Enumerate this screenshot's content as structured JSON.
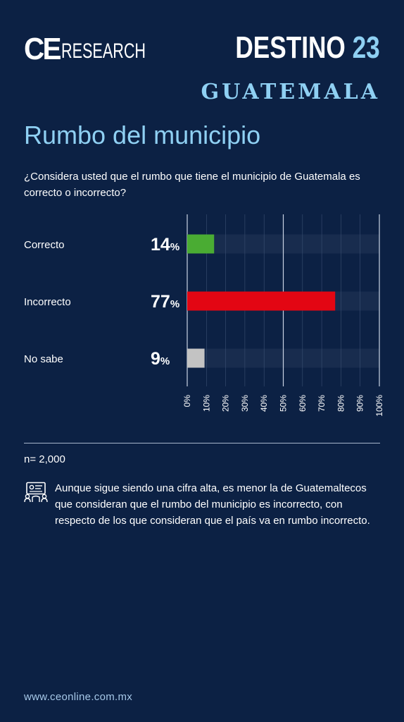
{
  "brand": {
    "ce": "CE",
    "research": "RESEARCH",
    "destino": "DESTINO",
    "destino_num": "23",
    "region": "GUATEMALA"
  },
  "title": "Rumbo del municipio",
  "question": "¿Considera usted que el rumbo que tiene el municipio de Guatemala es correcto o incorrecto?",
  "sample": "n= 2,000",
  "note": "Aunque sigue siendo una cifra alta, es menor la de Guatemaltecos que consideran que el rumbo del municipio es incorrecto, con respecto de los que consideran que el país va en rumbo incorrecto.",
  "website": "www.ceonline.com.mx",
  "icons": {
    "note": "presentation-icon"
  },
  "colors": {
    "background": "#0c2144",
    "track": "#182c4e",
    "accent": "#8fd0f3",
    "correcto": "#4aac33",
    "incorrecto": "#e30613",
    "no_sabe": "#c3c3c3"
  },
  "chart_data": {
    "type": "bar",
    "orientation": "horizontal",
    "categories": [
      "Correcto",
      "Incorrecto",
      "No sabe"
    ],
    "values": [
      14,
      77,
      9
    ],
    "value_suffix": "%",
    "colors": [
      "#4aac33",
      "#e30613",
      "#c3c3c3"
    ],
    "xlim": [
      0,
      100
    ],
    "xticks": [
      "0%",
      "10%",
      "20%",
      "30%",
      "40%",
      "50%",
      "60%",
      "70%",
      "80%",
      "90%",
      "100%"
    ],
    "grid": true
  }
}
